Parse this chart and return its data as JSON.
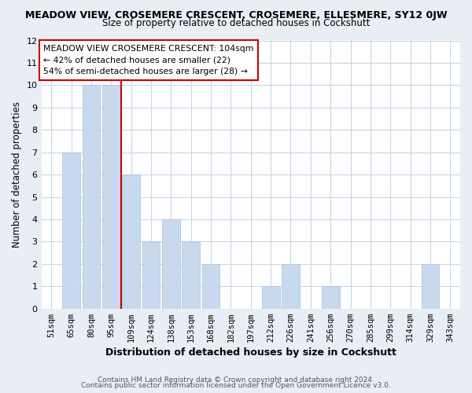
{
  "title_top": "MEADOW VIEW, CROSEMERE CRESCENT, CROSEMERE, ELLESMERE, SY12 0JW",
  "title_sub": "Size of property relative to detached houses in Cockshutt",
  "xlabel": "Distribution of detached houses by size in Cockshutt",
  "ylabel": "Number of detached properties",
  "bar_labels": [
    "51sqm",
    "65sqm",
    "80sqm",
    "95sqm",
    "109sqm",
    "124sqm",
    "138sqm",
    "153sqm",
    "168sqm",
    "182sqm",
    "197sqm",
    "212sqm",
    "226sqm",
    "241sqm",
    "256sqm",
    "270sqm",
    "285sqm",
    "299sqm",
    "314sqm",
    "329sqm",
    "343sqm"
  ],
  "bar_values": [
    0,
    7,
    10,
    10,
    6,
    3,
    4,
    3,
    2,
    0,
    0,
    1,
    2,
    0,
    1,
    0,
    0,
    0,
    0,
    2,
    0
  ],
  "bar_color": "#c9d9ed",
  "bar_edge_color": "#a8c0de",
  "vline_color": "#cc0000",
  "vline_index": 3.5,
  "ylim": [
    0,
    12
  ],
  "yticks": [
    0,
    1,
    2,
    3,
    4,
    5,
    6,
    7,
    8,
    9,
    10,
    11,
    12
  ],
  "annotation_title": "MEADOW VIEW CROSEMERE CRESCENT: 104sqm",
  "annotation_line1": "← 42% of detached houses are smaller (22)",
  "annotation_line2": "54% of semi-detached houses are larger (28) →",
  "footer1": "Contains HM Land Registry data © Crown copyright and database right 2024.",
  "footer2": "Contains public sector information licensed under the Open Government Licence v3.0.",
  "grid_color": "#c8d8e8",
  "background_color": "#ffffff",
  "fig_background": "#e8eef4"
}
